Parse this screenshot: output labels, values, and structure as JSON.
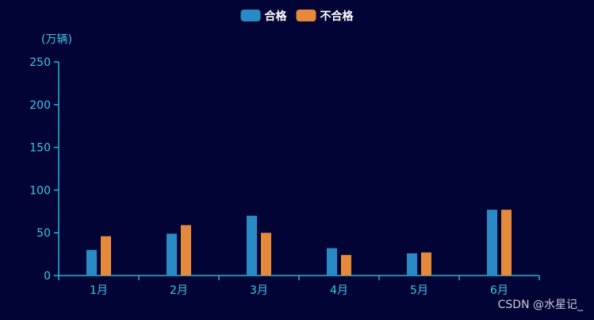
{
  "chart_data": {
    "type": "bar",
    "categories": [
      "1月",
      "2月",
      "3月",
      "4月",
      "5月",
      "6月"
    ],
    "series": [
      {
        "name": "合格",
        "values": [
          30,
          49,
          70,
          32,
          26,
          77
        ],
        "color": "#2a8ac6"
      },
      {
        "name": "不合格",
        "values": [
          46,
          59,
          50,
          24,
          27,
          77
        ],
        "color": "#e58a3a"
      }
    ],
    "ylabel": "(万辆)",
    "ylim": [
      0,
      250
    ],
    "yticks": [
      0,
      50,
      100,
      150,
      200,
      250
    ],
    "grid": false,
    "legend_position": "top-center"
  },
  "colors": {
    "background": "#030436",
    "axis": "#2bb4d4",
    "tick_label": "#3ec6e0",
    "legend_text": "#ffffff"
  },
  "watermark": "CSDN @水星记_"
}
